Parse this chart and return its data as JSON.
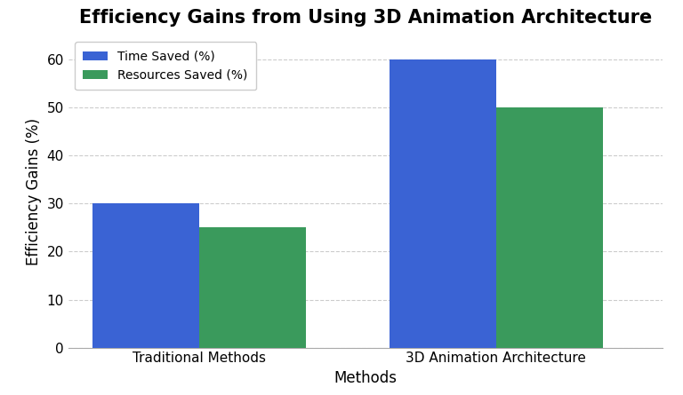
{
  "title": "Efficiency Gains from Using 3D Animation Architecture",
  "xlabel": "Methods",
  "ylabel": "Efficiency Gains (%)",
  "categories": [
    "Traditional Methods",
    "3D Animation Architecture"
  ],
  "series": [
    {
      "label": "Time Saved (%)",
      "values": [
        30,
        60
      ],
      "color": "#3a63d4"
    },
    {
      "label": "Resources Saved (%)",
      "values": [
        25,
        50
      ],
      "color": "#3a9a5c"
    }
  ],
  "ylim": [
    0,
    65
  ],
  "yticks": [
    0,
    10,
    20,
    30,
    40,
    50,
    60
  ],
  "bar_width": 0.18,
  "background_color": "#ffffff",
  "plot_bg_color": "#ffffff",
  "grid_color": "#cccccc",
  "title_fontsize": 15,
  "label_fontsize": 12,
  "tick_fontsize": 11,
  "legend_fontsize": 10,
  "x_positions": [
    0.25,
    0.75
  ],
  "xlim": [
    0.0,
    1.0
  ]
}
